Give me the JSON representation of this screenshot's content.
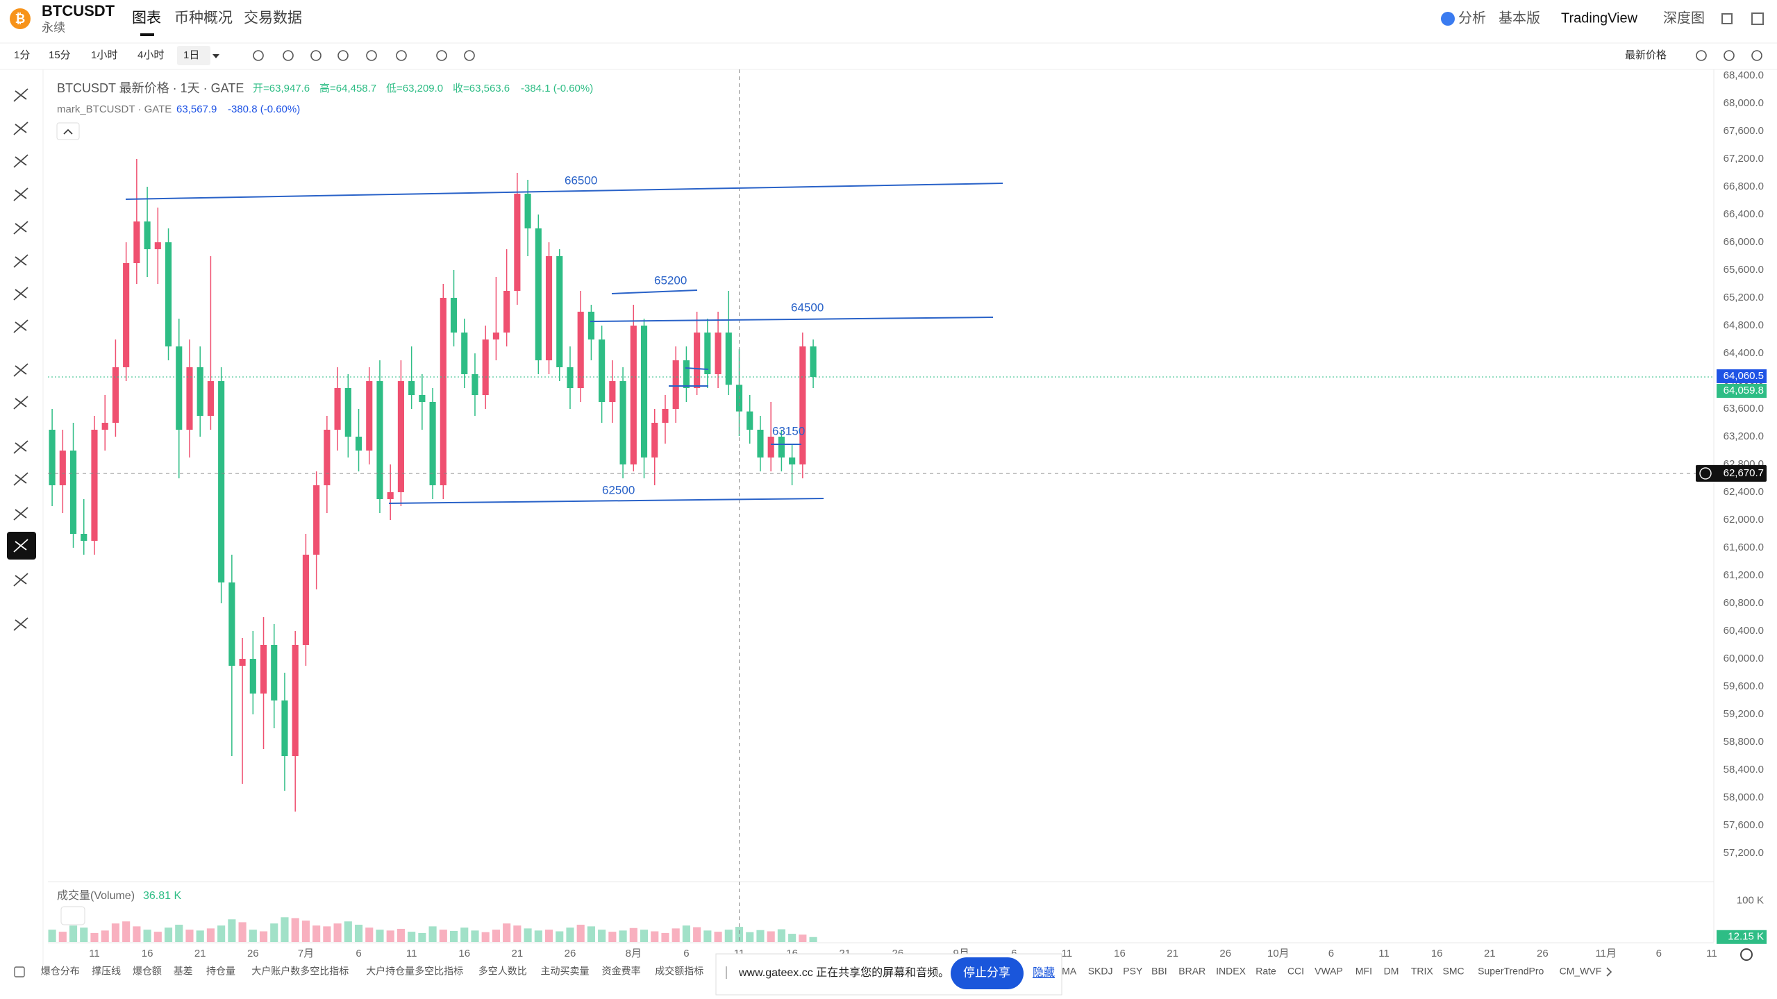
{
  "header": {
    "symbol": "BTCUSDT",
    "subtitle": "永续",
    "tabs": [
      "图表",
      "币种概况",
      "交易数据"
    ],
    "right_links": [
      "分析",
      "基本版",
      "TradingView",
      "深度图"
    ]
  },
  "toolbar": {
    "intervals": [
      "1分",
      "15分",
      "1小时",
      "4小时",
      "1日"
    ],
    "price_mode": "最新价格"
  },
  "legend": {
    "title": "BTCUSDT 最新价格 · 1天 · GATE",
    "open": "开=63,947.6",
    "high": "高=64,458.7",
    "low": "低=63,209.0",
    "close": "收=63,563.6",
    "change": "-384.1 (-0.60%)",
    "mark_title": "mark_BTCUSDT · GATE",
    "mark_value": "63,567.9",
    "mark_change": "-380.8 (-0.60%)"
  },
  "chart_data": {
    "type": "candlestick",
    "up_color": "#ef5070",
    "down_color": "#2ebd85",
    "x": [
      6,
      7,
      8,
      9,
      10,
      11,
      12,
      13,
      14,
      15,
      16,
      17,
      18,
      19,
      20,
      21,
      22,
      23,
      24,
      25,
      26,
      27,
      28,
      29,
      30,
      31,
      32,
      33,
      34,
      35,
      36,
      37,
      38,
      39,
      40,
      41,
      42,
      43,
      44,
      45,
      46,
      47,
      48,
      49,
      50,
      51,
      52,
      53,
      54,
      55,
      56,
      57,
      58,
      59,
      60,
      61,
      62,
      63,
      64,
      65,
      66,
      67,
      68,
      69,
      70,
      71,
      72,
      73,
      74,
      75,
      76,
      77,
      78
    ],
    "open": [
      63300,
      62500,
      63000,
      61800,
      61700,
      63300,
      63400,
      64200,
      65700,
      66300,
      65900,
      66000,
      64500,
      63300,
      64200,
      63500,
      64000,
      61100,
      59900,
      60000,
      59500,
      60200,
      59400,
      58600,
      60200,
      61500,
      62500,
      63300,
      63900,
      63200,
      63000,
      64000,
      62300,
      62400,
      64000,
      63800,
      63700,
      62500,
      65200,
      64700,
      64100,
      63800,
      64600,
      64700,
      65300,
      66700,
      66200,
      64300,
      65800,
      64200,
      63900,
      65000,
      64600,
      63700,
      64000,
      62800,
      64800,
      62900,
      63400,
      63600,
      64300,
      63900,
      64700,
      64100,
      64700,
      63947.6,
      63563.6,
      63300,
      62900,
      63200,
      62900,
      62800,
      64500
    ],
    "high": [
      63600,
      63300,
      63400,
      62300,
      63500,
      63800,
      64600,
      66000,
      67200,
      66800,
      66500,
      66200,
      64900,
      64600,
      64500,
      65800,
      64200,
      61500,
      60300,
      60400,
      60600,
      60500,
      59800,
      60400,
      61800,
      62700,
      63500,
      64200,
      64100,
      63600,
      64200,
      64300,
      62800,
      64300,
      64500,
      64100,
      63900,
      65400,
      65600,
      64900,
      64400,
      64800,
      65500,
      65900,
      67000,
      66900,
      66400,
      66000,
      65900,
      64500,
      65300,
      65100,
      64800,
      64300,
      64200,
      65100,
      64900,
      63600,
      63800,
      64500,
      64500,
      65000,
      64900,
      65000,
      65300,
      64458.7,
      63800,
      63500,
      63700,
      63300,
      63100,
      64700,
      64600
    ],
    "low": [
      62200,
      62100,
      61600,
      61500,
      61500,
      63000,
      63200,
      64000,
      65400,
      65500,
      65400,
      64300,
      62600,
      62900,
      63200,
      63300,
      60800,
      58600,
      58200,
      59200,
      58700,
      59000,
      58100,
      57800,
      59900,
      61000,
      62100,
      63000,
      62900,
      62700,
      62800,
      62100,
      62000,
      62200,
      63600,
      63300,
      62300,
      62300,
      64500,
      63900,
      63500,
      63600,
      64300,
      64500,
      65100,
      65800,
      64100,
      64100,
      64000,
      63600,
      63700,
      64300,
      63400,
      63400,
      62600,
      62700,
      62600,
      62500,
      63100,
      63400,
      63700,
      63800,
      63900,
      63900,
      63800,
      63209.0,
      63100,
      62700,
      62700,
      62700,
      62500,
      62600,
      63900
    ],
    "close": [
      62500,
      63000,
      61800,
      61700,
      63300,
      63400,
      64200,
      65700,
      66300,
      65900,
      66000,
      64500,
      63300,
      64200,
      63500,
      64000,
      61100,
      59900,
      60000,
      59500,
      60200,
      59400,
      58600,
      60200,
      61500,
      62500,
      63300,
      63900,
      63200,
      63000,
      64000,
      62300,
      62400,
      64000,
      63800,
      63700,
      62500,
      65200,
      64700,
      64100,
      63800,
      64600,
      64700,
      65300,
      66700,
      66200,
      64300,
      65800,
      64200,
      63900,
      65000,
      64600,
      63700,
      64000,
      62800,
      64800,
      62900,
      63400,
      63600,
      64300,
      63900,
      64700,
      64100,
      64700,
      63947.6,
      63563.6,
      63300,
      62900,
      63200,
      62900,
      62800,
      64500,
      64060.5
    ],
    "xlim": [
      5.6,
      163.2
    ],
    "xticks": [
      {
        "value": 10,
        "label": "11"
      },
      {
        "value": 15,
        "label": "16"
      },
      {
        "value": 20,
        "label": "21"
      },
      {
        "value": 25,
        "label": "26"
      },
      {
        "value": 30,
        "label": "7月"
      },
      {
        "value": 35,
        "label": "6"
      },
      {
        "value": 40,
        "label": "11"
      },
      {
        "value": 45,
        "label": "16"
      },
      {
        "value": 50,
        "label": "21"
      },
      {
        "value": 55,
        "label": "26"
      },
      {
        "value": 61,
        "label": "8月"
      },
      {
        "value": 66,
        "label": "6"
      },
      {
        "value": 71,
        "label": "11"
      },
      {
        "value": 76,
        "label": "16"
      },
      {
        "value": 81,
        "label": "21"
      },
      {
        "value": 86,
        "label": "26"
      },
      {
        "value": 92,
        "label": "9月"
      },
      {
        "value": 97,
        "label": "6"
      },
      {
        "value": 102,
        "label": "11"
      },
      {
        "value": 107,
        "label": "16"
      },
      {
        "value": 112,
        "label": "21"
      },
      {
        "value": 117,
        "label": "26"
      },
      {
        "value": 122,
        "label": "10月"
      },
      {
        "value": 127,
        "label": "6"
      },
      {
        "value": 132,
        "label": "11"
      },
      {
        "value": 137,
        "label": "16"
      },
      {
        "value": 142,
        "label": "21"
      },
      {
        "value": 147,
        "label": "26"
      },
      {
        "value": 153,
        "label": "11月"
      },
      {
        "value": 158,
        "label": "6"
      },
      {
        "value": 163,
        "label": "11"
      }
    ],
    "ylim": [
      56840,
      68490
    ],
    "yticks": [
      {
        "value": 57200,
        "label": "57,200.0"
      },
      {
        "value": 57600,
        "label": "57,600.0"
      },
      {
        "value": 58000,
        "label": "58,000.0"
      },
      {
        "value": 58400,
        "label": "58,400.0"
      },
      {
        "value": 58800,
        "label": "58,800.0"
      },
      {
        "value": 59200,
        "label": "59,200.0"
      },
      {
        "value": 59600,
        "label": "59,600.0"
      },
      {
        "value": 60000,
        "label": "60,000.0"
      },
      {
        "value": 60400,
        "label": "60,400.0"
      },
      {
        "value": 60800,
        "label": "60,800.0"
      },
      {
        "value": 61200,
        "label": "61,200.0"
      },
      {
        "value": 61600,
        "label": "61,600.0"
      },
      {
        "value": 62000,
        "label": "62,000.0"
      },
      {
        "value": 62400,
        "label": "62,400.0"
      },
      {
        "value": 62800,
        "label": "62,800.0"
      },
      {
        "value": 63200,
        "label": "63,200.0"
      },
      {
        "value": 63600,
        "label": "63,600.0"
      },
      {
        "value": 64000,
        "label": "64,000.0"
      },
      {
        "value": 64400,
        "label": "64,400.0"
      },
      {
        "value": 64800,
        "label": "64,800.0"
      },
      {
        "value": 65200,
        "label": "65,200.0"
      },
      {
        "value": 65600,
        "label": "65,600.0"
      },
      {
        "value": 66000,
        "label": "66,000.0"
      },
      {
        "value": 66400,
        "label": "66,400.0"
      },
      {
        "value": 66800,
        "label": "66,800.0"
      },
      {
        "value": 67200,
        "label": "67,200.0"
      },
      {
        "value": 67600,
        "label": "67,600.0"
      },
      {
        "value": 68000,
        "label": "68,000.0"
      },
      {
        "value": 68400,
        "label": "68,400.0"
      }
    ],
    "grid": false,
    "last_price": {
      "value": 64060.5,
      "label": "64,060.5"
    },
    "mark_price": {
      "value": 64059.8,
      "label": "64,059.8"
    },
    "crosshair": {
      "x": 71,
      "price": {
        "value": 62670.7,
        "label": "62,670.7"
      }
    },
    "drawings": [
      "66500",
      "65200",
      "64500",
      "62500",
      "63150"
    ],
    "volume": {
      "name": "成交量(Volume)",
      "hover_label": "36.81 K",
      "last_label": "12.15 K",
      "ylim": [
        0,
        136
      ],
      "yticks": [
        {
          "value": 100,
          "label": "100 K"
        }
      ],
      "values": [
        30,
        25,
        40,
        35,
        22,
        28,
        45,
        50,
        38,
        30,
        25,
        35,
        42,
        30,
        28,
        33,
        40,
        55,
        48,
        30,
        26,
        45,
        60,
        58,
        52,
        40,
        38,
        45,
        50,
        42,
        35,
        30,
        28,
        32,
        25,
        22,
        38,
        30,
        27,
        35,
        28,
        24,
        30,
        45,
        40,
        33,
        28,
        30,
        26,
        35,
        42,
        38,
        30,
        25,
        28,
        34,
        30,
        26,
        22,
        33,
        40,
        36,
        28,
        25,
        30,
        36.81,
        24,
        29,
        26,
        31,
        20,
        18,
        12.15
      ]
    }
  },
  "indicators": [
    "爆仓分布",
    "撑压线",
    "爆仓额",
    "基差",
    "持仓量",
    "大户账户数多空比指标",
    "大户持仓量多空比指标",
    "多空人数比",
    "主动买卖量",
    "资金费率",
    "成交额指标",
    "MA",
    "SKDJ",
    "PSY",
    "BBI",
    "BRAR",
    "INDEX",
    "Rate",
    "CCI",
    "VWAP",
    "MFI",
    "DM",
    "TRIX",
    "SMC",
    "SuperTrendPro",
    "CM_WVF"
  ],
  "share_bar": {
    "message": "www.gateex.cc 正在共享您的屏幕和音频。",
    "stop": "停止分享",
    "hide": "隐藏"
  }
}
